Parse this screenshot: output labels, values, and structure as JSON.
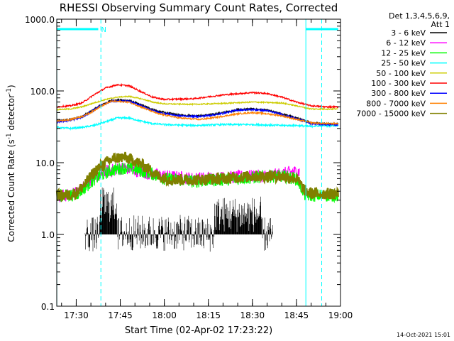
{
  "chart_data": {
    "type": "line",
    "title": "RHESSI Observing Summary Count Rates, Corrected",
    "xlabel": "Start Time (02-Apr-02 17:23:22)",
    "ylabel_main": "Corrected Count Rate (s",
    "ylabel_sup1": "-1",
    "ylabel_mid": " detector",
    "ylabel_sup2": "-1",
    "ylabel_end": ")",
    "yscale": "log",
    "ylim": [
      0.1,
      1000
    ],
    "xlim_min": [
      1043.37,
      1140
    ],
    "xticks": [
      {
        "min": 1050,
        "label": "17:30"
      },
      {
        "min": 1065,
        "label": "17:45"
      },
      {
        "min": 1080,
        "label": "18:00"
      },
      {
        "min": 1095,
        "label": "18:15"
      },
      {
        "min": 1110,
        "label": "18:30"
      },
      {
        "min": 1125,
        "label": "18:45"
      },
      {
        "min": 1140,
        "label": "19:00"
      }
    ],
    "yticks": [
      {
        "v": 0.1,
        "label": "0.1"
      },
      {
        "v": 1,
        "label": "1.0"
      },
      {
        "v": 10,
        "label": "10.0"
      },
      {
        "v": 100,
        "label": "100.0"
      },
      {
        "v": 1000,
        "label": "1000.0"
      }
    ],
    "legend_header": [
      "Det 1,3,4,5,6,9,",
      "Att 1"
    ],
    "legend_placement": "right",
    "annotations": {
      "footer": "14-Oct-2021 15:01",
      "night_marker": "N",
      "dashed_lines_min": [
        1058.4,
        1133.6
      ],
      "solid_lines_min": [
        1043.4,
        1128.2
      ],
      "night_bars_min": [
        [
          1043.4,
          1057.5
        ],
        [
          1128.2,
          1139.2
        ]
      ]
    },
    "series": [
      {
        "name": "3 - 6 keV",
        "color": "#000000",
        "x": [
          1043.4,
          1048,
          1052,
          1055,
          1058,
          1062,
          1068,
          1072,
          1078,
          1085,
          1092,
          1098,
          1105,
          1110,
          1115,
          1120,
          1125,
          1130,
          1135,
          1139.2
        ],
        "y": [
          38,
          40,
          44,
          52,
          62,
          74,
          74,
          64,
          52,
          46,
          45,
          48,
          55,
          56,
          54,
          48,
          42,
          36,
          35,
          35
        ]
      },
      {
        "name": "6 - 12 keV",
        "color": "#ff00ff",
        "x": [
          1043.4,
          1047,
          1050,
          1053,
          1055,
          1057,
          1060,
          1063,
          1066,
          1069,
          1072,
          1075,
          1080,
          1090,
          1100,
          1110,
          1115,
          1120,
          1124,
          1126
        ],
        "y": [
          3.5,
          3.5,
          3.8,
          4.8,
          5.8,
          6.5,
          7.5,
          8.0,
          8.5,
          8.0,
          7.5,
          7.0,
          6.5,
          6.0,
          6.2,
          6.5,
          6.5,
          7.0,
          7.5,
          7.5
        ]
      },
      {
        "name": "12 - 25 keV",
        "color": "#00ff00",
        "x": [
          1043.4,
          1047,
          1050,
          1053,
          1056,
          1058,
          1061,
          1064,
          1067,
          1070,
          1073,
          1076,
          1080,
          1090,
          1100,
          1110,
          1115,
          1120,
          1125,
          1128,
          1130,
          1135,
          1139.2
        ],
        "y": [
          3.5,
          3.5,
          3.6,
          4.5,
          5.8,
          6.5,
          7.5,
          8.2,
          8.5,
          8.0,
          7.5,
          7.0,
          6.0,
          5.5,
          5.8,
          6.2,
          6.5,
          6.5,
          6.0,
          3.5,
          3.5,
          3.5,
          3.5
        ]
      },
      {
        "name": "25 - 50 keV",
        "color": "#00ffff",
        "x": [
          1043.4,
          1048,
          1052,
          1056,
          1060,
          1064,
          1068,
          1072,
          1076,
          1080,
          1090,
          1100,
          1110,
          1120,
          1125,
          1130,
          1135,
          1139.2
        ],
        "y": [
          31,
          30,
          31,
          33,
          37,
          42,
          42,
          38,
          35,
          34,
          33,
          34,
          34,
          33,
          33,
          32,
          33,
          33
        ]
      },
      {
        "name": "50 - 100 keV",
        "color": "#cccc00",
        "x": [
          1043.4,
          1048,
          1052,
          1056,
          1060,
          1064,
          1068,
          1072,
          1076,
          1080,
          1090,
          1100,
          1110,
          1120,
          1125,
          1130,
          1135,
          1139.2
        ],
        "y": [
          55,
          56,
          60,
          68,
          76,
          82,
          84,
          78,
          70,
          66,
          65,
          67,
          70,
          68,
          62,
          56,
          56,
          56
        ]
      },
      {
        "name": "100 - 300 keV",
        "color": "#ff0000",
        "x": [
          1043.4,
          1048,
          1052,
          1056,
          1060,
          1064,
          1068,
          1072,
          1076,
          1080,
          1090,
          1100,
          1110,
          1115,
          1120,
          1125,
          1130,
          1135,
          1139.2
        ],
        "y": [
          60,
          62,
          68,
          88,
          110,
          122,
          118,
          98,
          82,
          76,
          78,
          88,
          95,
          92,
          82,
          70,
          62,
          60,
          60
        ]
      },
      {
        "name": "300 - 800 keV",
        "color": "#0000ff",
        "x": [
          1043.4,
          1048,
          1052,
          1055,
          1058,
          1062,
          1068,
          1072,
          1078,
          1085,
          1092,
          1098,
          1105,
          1110,
          1115,
          1120,
          1125,
          1130,
          1135,
          1139.2
        ],
        "y": [
          37,
          39,
          43,
          51,
          61,
          72,
          72,
          62,
          50,
          45,
          44,
          47,
          54,
          55,
          53,
          47,
          41,
          35,
          34,
          34
        ]
      },
      {
        "name": "800 - 7000 keV",
        "color": "#ff8000",
        "x": [
          1043.4,
          1048,
          1052,
          1055,
          1058,
          1062,
          1068,
          1072,
          1078,
          1085,
          1092,
          1098,
          1105,
          1110,
          1115,
          1120,
          1125,
          1130,
          1135,
          1139.2
        ],
        "y": [
          38,
          40,
          44,
          50,
          60,
          72,
          70,
          60,
          48,
          42,
          40,
          43,
          48,
          50,
          48,
          45,
          40,
          36,
          35,
          35
        ]
      },
      {
        "name": "7000 - 15000 keV",
        "color": "#808000",
        "x": [
          1043.4,
          1047,
          1050,
          1053,
          1055,
          1057,
          1060,
          1063,
          1066,
          1069,
          1072,
          1075,
          1078,
          1082,
          1090,
          1100,
          1110,
          1115,
          1120,
          1125,
          1128,
          1130,
          1135,
          1139.2
        ],
        "y": [
          3.5,
          3.5,
          3.8,
          5.0,
          6.5,
          8.0,
          10.0,
          11.5,
          12.0,
          11.0,
          9.5,
          8.0,
          6.5,
          5.8,
          5.8,
          6.0,
          6.5,
          6.5,
          6.5,
          6.0,
          4.0,
          3.7,
          3.7,
          3.7
        ]
      }
    ]
  }
}
